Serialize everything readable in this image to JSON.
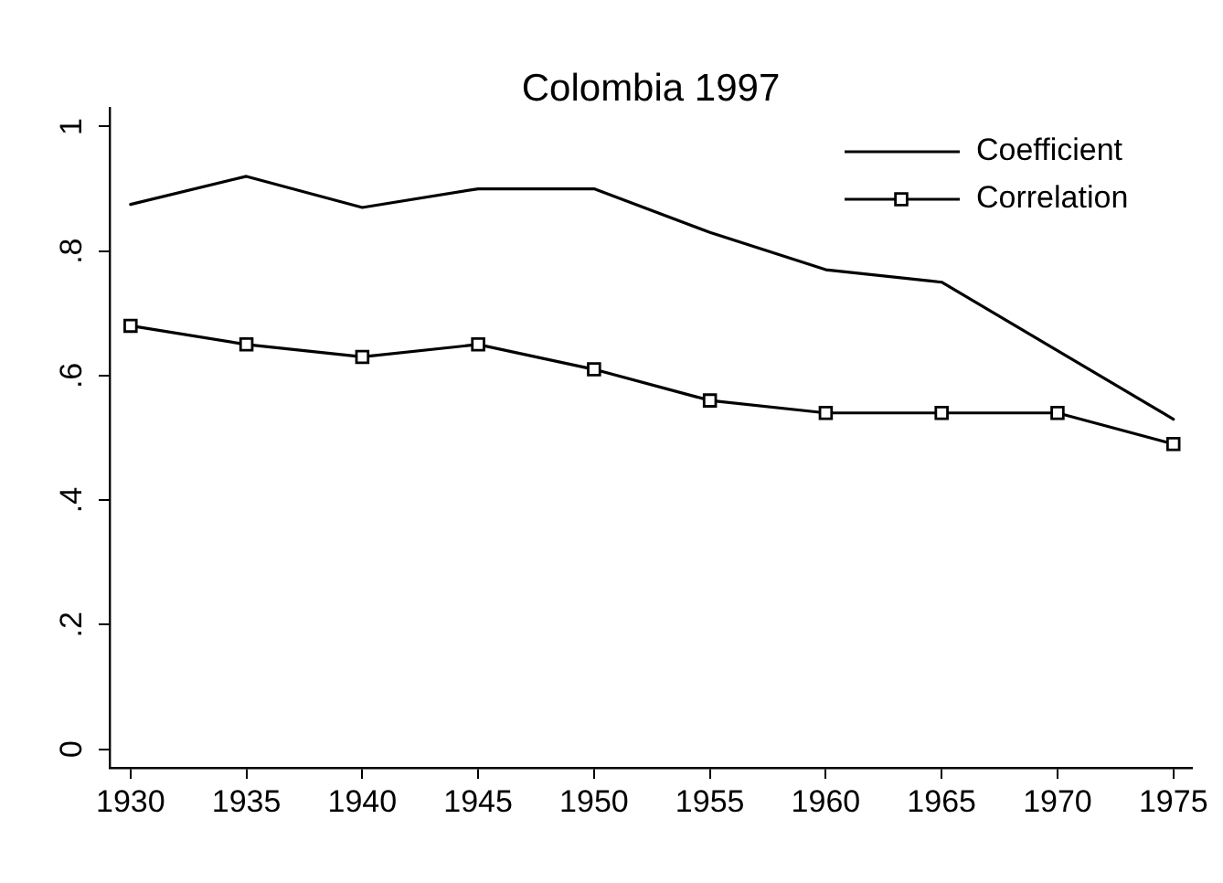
{
  "chart_data": {
    "type": "line",
    "title": "Colombia 1997",
    "x": [
      1930,
      1935,
      1940,
      1945,
      1950,
      1955,
      1960,
      1965,
      1970,
      1975
    ],
    "series": [
      {
        "name": "Coefficient",
        "color": "#000000",
        "marker": "none",
        "values": [
          0.875,
          0.92,
          0.87,
          0.9,
          0.9,
          0.83,
          0.77,
          0.75,
          0.64,
          0.53
        ]
      },
      {
        "name": "Correlation",
        "color": "#000000",
        "marker": "square",
        "values": [
          0.68,
          0.65,
          0.63,
          0.65,
          0.61,
          0.56,
          0.54,
          0.54,
          0.54,
          0.49
        ]
      }
    ],
    "xlim": [
      1929.1,
      1975.8
    ],
    "xticks": [
      1930,
      1935,
      1940,
      1945,
      1950,
      1955,
      1960,
      1965,
      1970,
      1975
    ],
    "ylim": [
      -0.03,
      1.03
    ],
    "yticks": [
      0,
      {
        "value": 0.2,
        "label": ".2"
      },
      {
        "value": 0.4,
        "label": ".4"
      },
      {
        "value": 0.6,
        "label": ".6"
      },
      {
        "value": 0.8,
        "label": ".8"
      },
      1
    ],
    "grid": false,
    "legend": "top right",
    "line_style": "solid"
  }
}
